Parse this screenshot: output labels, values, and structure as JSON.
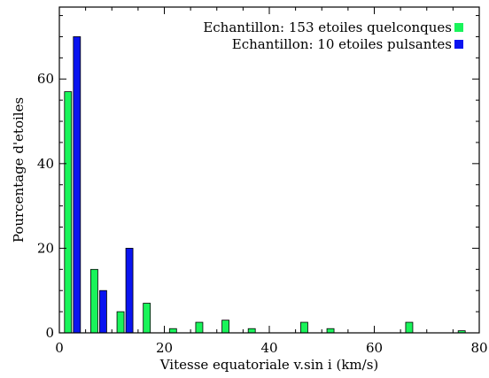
{
  "chart_data": {
    "type": "bar",
    "title": "",
    "xlabel": "Vitesse equatoriale v.sin i (km/s)",
    "ylabel": "Pourcentage d'etoiles",
    "xlim": [
      0,
      80
    ],
    "ylim": [
      0,
      77
    ],
    "xticks": [
      0,
      20,
      40,
      60,
      80
    ],
    "yticks": [
      0,
      20,
      40,
      60
    ],
    "grid": false,
    "legend_position": "top-right",
    "series": [
      {
        "name": "Echantillon: 153 etoiles quelconques",
        "color": "#19f45a",
        "x": [
          2.5,
          7.5,
          12.5,
          17.5,
          22.5,
          27.5,
          32.5,
          37.5,
          42.5,
          47.5,
          52.5,
          57.5,
          62.5,
          67.5,
          72.5,
          77.5
        ],
        "values": [
          57,
          15,
          5,
          7,
          1,
          2.5,
          3,
          1,
          0,
          2.5,
          1,
          0,
          0,
          2.5,
          0,
          0.5
        ]
      },
      {
        "name": "Echantillon:  10 etoiles pulsantes",
        "color": "#0a14f0",
        "x": [
          2.5,
          7.5,
          12.5,
          17.5,
          22.5,
          27.5,
          32.5,
          37.5,
          42.5,
          47.5,
          52.5,
          57.5,
          62.5,
          67.5,
          72.5,
          77.5
        ],
        "values": [
          70,
          10,
          20,
          0,
          0,
          0,
          0,
          0,
          0,
          0,
          0,
          0,
          0,
          0,
          0,
          0
        ]
      }
    ]
  }
}
